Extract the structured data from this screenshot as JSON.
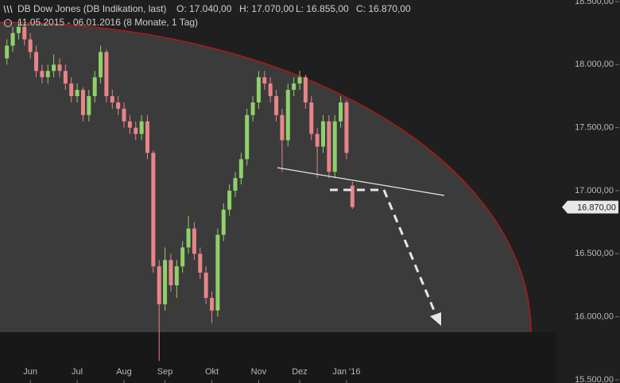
{
  "chart_data": {
    "type": "candlestick",
    "title": "DB Dow Jones (DB Indikation, last)",
    "ohlc_labels": [
      "O: 17.040,00",
      "H: 17.070,00",
      "L: 16.855,00",
      "C: 16.870,00"
    ],
    "subtitle": "11.05.2015 - 06.01.2016 (8 Monate, 1 Tag)",
    "categories": [
      null,
      null,
      null,
      null,
      "Jun",
      null,
      null,
      null,
      null,
      null,
      null,
      null,
      "Jul",
      null,
      null,
      null,
      null,
      null,
      null,
      null,
      "Aug",
      null,
      null,
      null,
      null,
      null,
      null,
      "Sep",
      null,
      null,
      null,
      null,
      null,
      null,
      null,
      "Okt",
      null,
      null,
      null,
      null,
      null,
      null,
      null,
      "Nov",
      null,
      null,
      null,
      null,
      null,
      null,
      "Dez",
      null,
      null,
      null,
      null,
      null,
      null,
      null,
      "Jan '16",
      null
    ],
    "series": [
      {
        "name": "open",
        "values": [
          18050,
          18150,
          18250,
          18300,
          18200,
          18100,
          17950,
          17900,
          17950,
          18000,
          17950,
          17850,
          17750,
          17800,
          17600,
          17750,
          17900,
          18100,
          17750,
          17700,
          17650,
          17550,
          17500,
          17450,
          17550,
          17300,
          16400,
          16100,
          16450,
          16250,
          16400,
          16550,
          16700,
          16500,
          16350,
          16150,
          16050,
          16650,
          16850,
          17000,
          17100,
          17250,
          17600,
          17700,
          17900,
          17850,
          17750,
          17600,
          17400,
          17800,
          17850,
          17900,
          17700,
          17450,
          17350,
          17550,
          17150,
          17550,
          17700,
          17040
        ]
      },
      {
        "name": "high",
        "values": [
          18200,
          18300,
          18350,
          18320,
          18250,
          18150,
          18000,
          18000,
          18080,
          18050,
          18000,
          17900,
          17850,
          17820,
          17800,
          17950,
          18150,
          18120,
          17800,
          17750,
          17700,
          17600,
          17550,
          17600,
          17600,
          17320,
          16450,
          16550,
          16500,
          16450,
          16600,
          16800,
          16750,
          16550,
          16400,
          16200,
          16700,
          16900,
          17050,
          17150,
          17300,
          17650,
          17750,
          17950,
          17950,
          17900,
          17800,
          17650,
          17850,
          17900,
          17950,
          17920,
          17750,
          17500,
          17600,
          17600,
          17600,
          17750,
          17720,
          17070
        ]
      },
      {
        "name": "low",
        "values": [
          18000,
          18100,
          18200,
          18150,
          18050,
          17900,
          17850,
          17850,
          17900,
          17900,
          17800,
          17700,
          17700,
          17550,
          17550,
          17700,
          17850,
          17700,
          17650,
          17600,
          17500,
          17450,
          17400,
          17400,
          17250,
          16350,
          15650,
          16050,
          16200,
          16150,
          16350,
          16500,
          16450,
          16300,
          16100,
          15950,
          16000,
          16600,
          16800,
          16950,
          17050,
          17200,
          17550,
          17650,
          17800,
          17700,
          17550,
          17150,
          17350,
          17750,
          17800,
          17650,
          17400,
          17100,
          17300,
          17100,
          17100,
          17500,
          17250,
          16855
        ]
      },
      {
        "name": "close",
        "values": [
          18150,
          18250,
          18300,
          18200,
          18100,
          17950,
          17900,
          17950,
          18000,
          17950,
          17850,
          17750,
          17800,
          17600,
          17750,
          17900,
          18100,
          17750,
          17700,
          17650,
          17550,
          17500,
          17450,
          17550,
          17300,
          16400,
          16100,
          16450,
          16250,
          16400,
          16550,
          16700,
          16500,
          16350,
          16150,
          16050,
          16650,
          16850,
          17000,
          17100,
          17250,
          17600,
          17700,
          17900,
          17850,
          17750,
          17600,
          17400,
          17800,
          17850,
          17900,
          17700,
          17450,
          17350,
          17550,
          17150,
          17550,
          17700,
          17300,
          16870
        ]
      }
    ],
    "up_color": "#8fd16a",
    "down_color": "#e8848a",
    "ylim": [
      15500,
      18500
    ],
    "yticks": [
      {
        "value": 15500,
        "label": "15.500,00"
      },
      {
        "value": 16000,
        "label": "16.000,00"
      },
      {
        "value": 16500,
        "label": "16.500,00"
      },
      {
        "value": 17000,
        "label": "17.000,00"
      },
      {
        "value": 17500,
        "label": "17.500,00"
      },
      {
        "value": 18000,
        "label": "18.000,00"
      },
      {
        "value": 18500,
        "label": "18.500,00"
      }
    ],
    "last_price": {
      "value": 16870,
      "label": "16.870,00"
    }
  }
}
